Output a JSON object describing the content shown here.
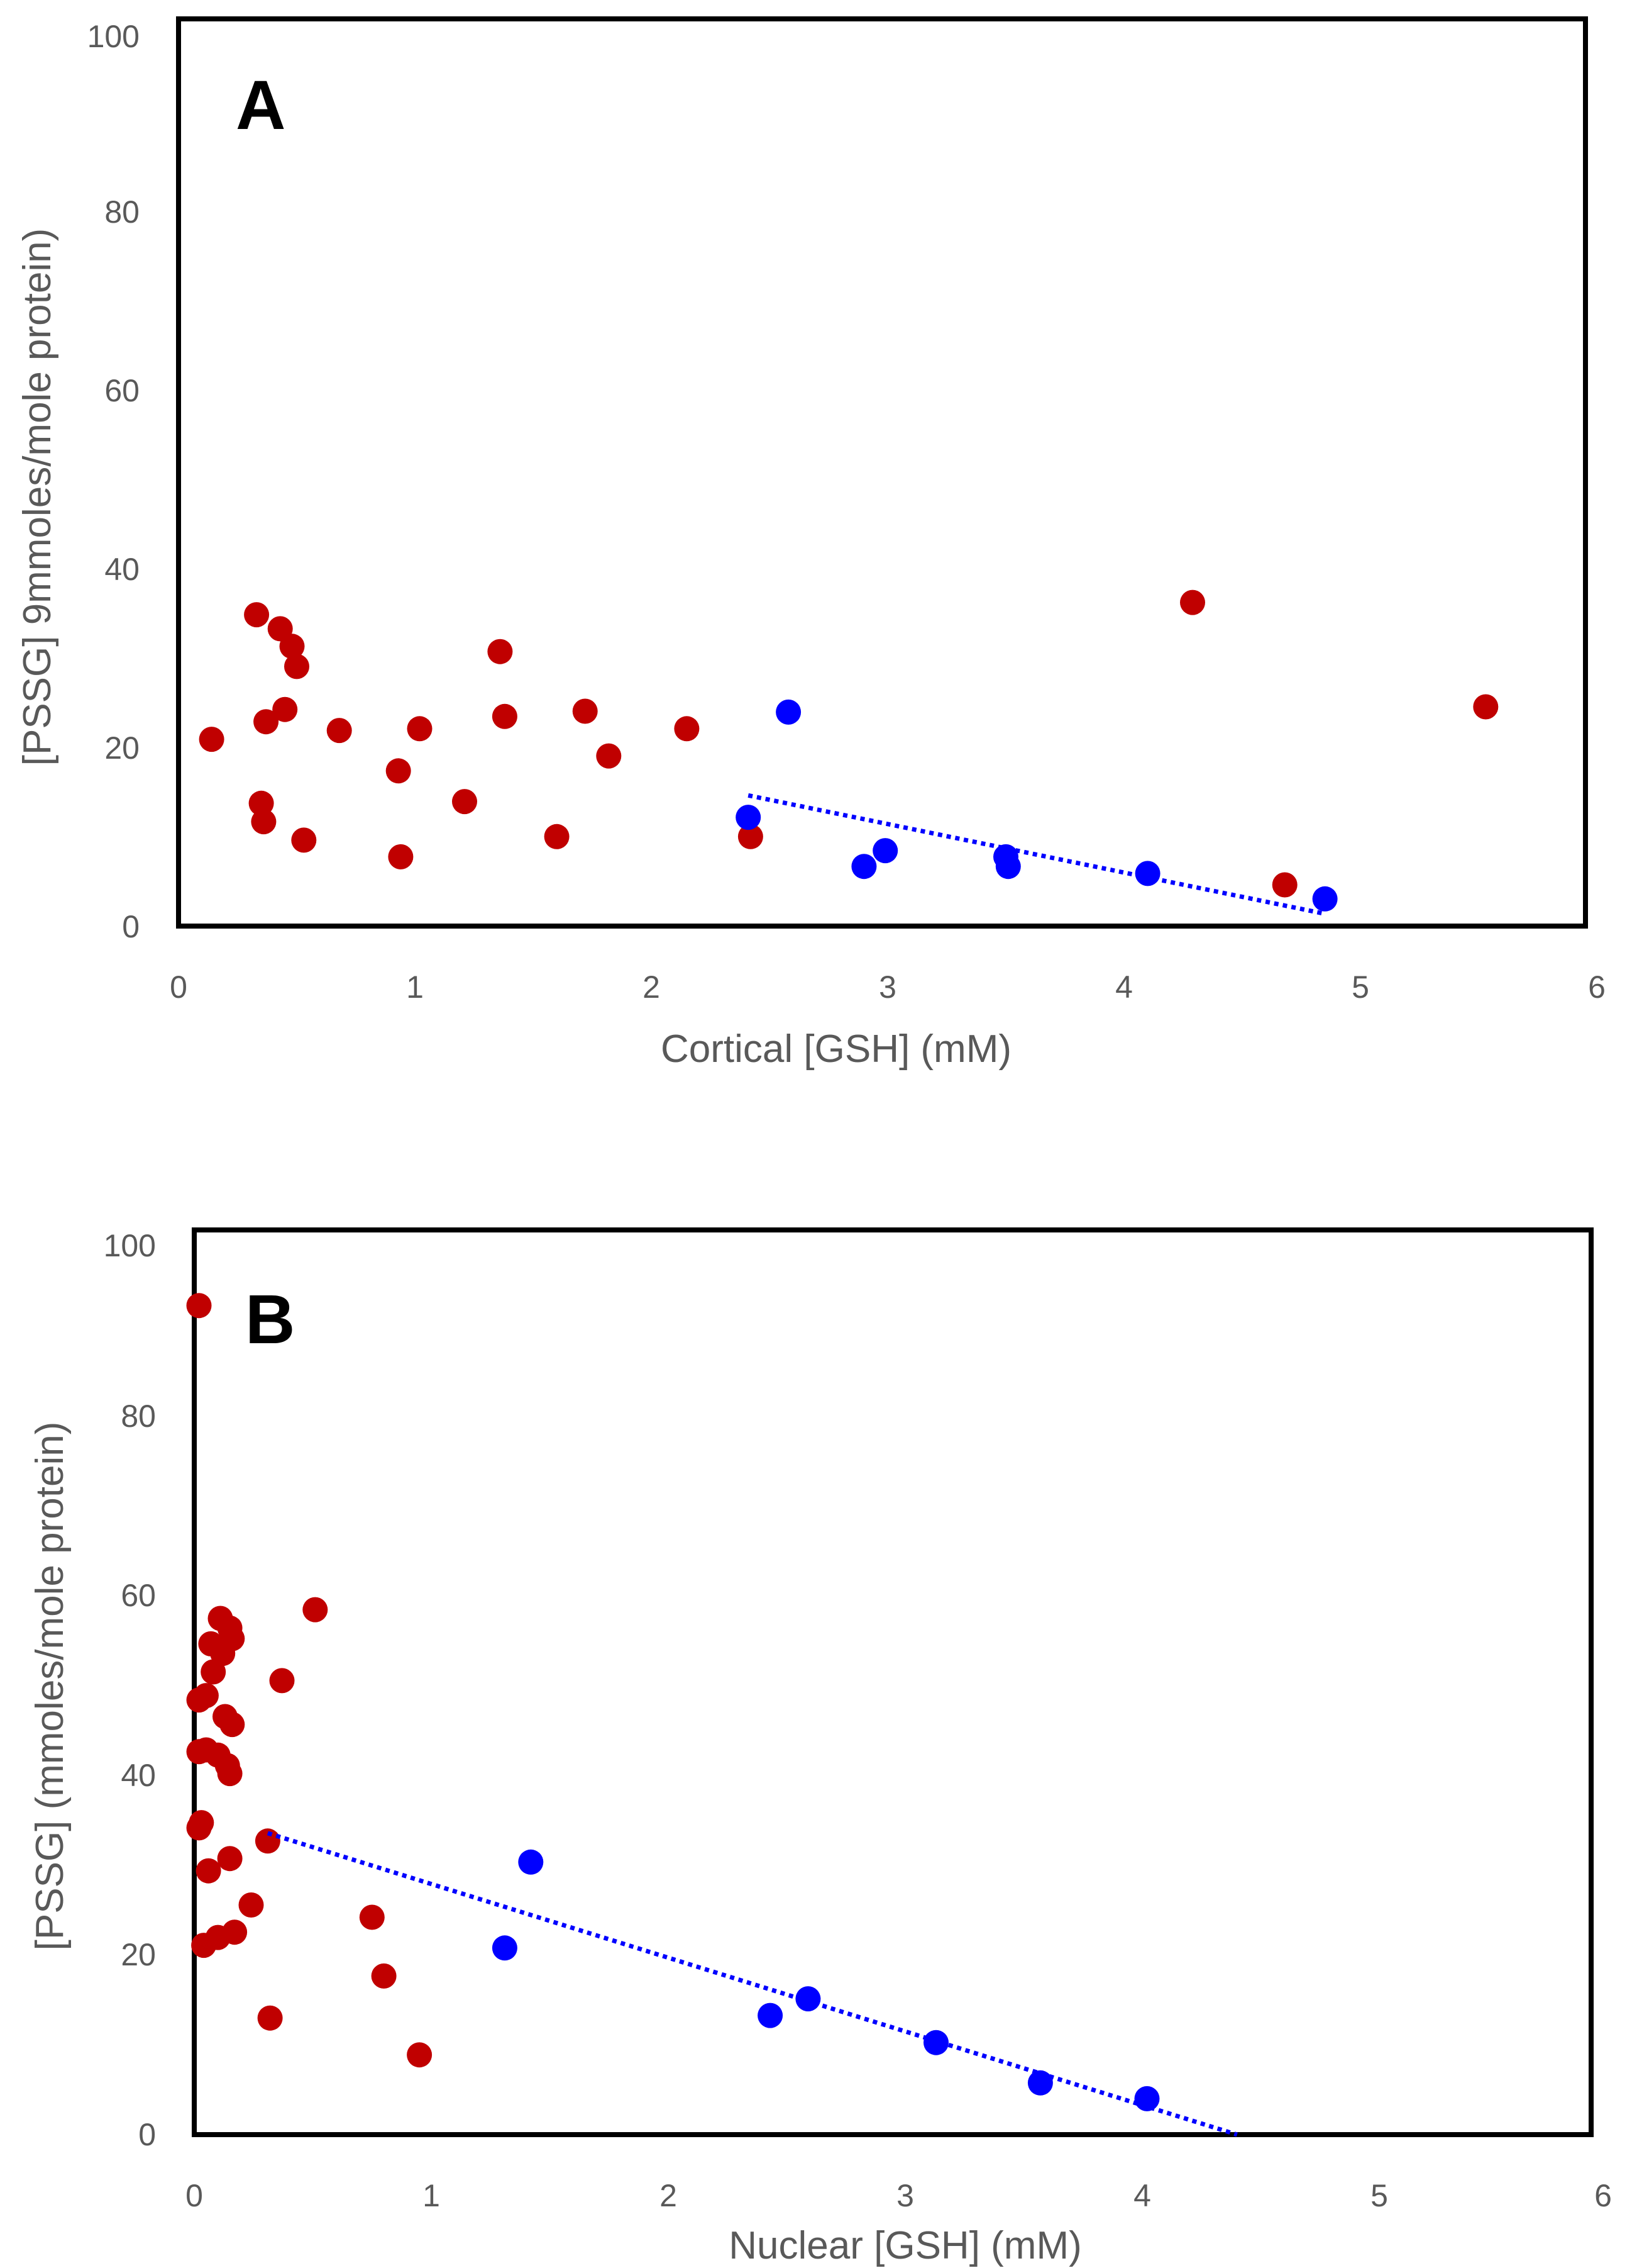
{
  "chart_data": [
    {
      "type": "scatter",
      "panel_label": "A",
      "xlabel": "Cortical [GSH] (mM)",
      "ylabel": "[PSSG] 9mmoles/mole protein)",
      "xlim": [
        0,
        6
      ],
      "ylim": [
        0,
        100
      ],
      "x_ticks": [
        "0",
        "1",
        "2",
        "3",
        "4",
        "5",
        "6"
      ],
      "y_ticks": [
        "0",
        "20",
        "40",
        "60",
        "80",
        "100"
      ],
      "colors": {
        "red": "#C00000",
        "blue": "#0000FF",
        "trend": "#0000FF"
      },
      "series": [
        {
          "name": "red",
          "points": [
            [
              0.14,
              21.3
            ],
            [
              0.33,
              35.5
            ],
            [
              0.35,
              14.0
            ],
            [
              0.36,
              11.9
            ],
            [
              0.37,
              23.3
            ],
            [
              0.43,
              33.9
            ],
            [
              0.45,
              24.7
            ],
            [
              0.48,
              31.9
            ],
            [
              0.5,
              29.6
            ],
            [
              0.53,
              9.8
            ],
            [
              0.68,
              22.3
            ],
            [
              0.93,
              17.7
            ],
            [
              0.94,
              7.9
            ],
            [
              1.02,
              22.5
            ],
            [
              1.21,
              14.2
            ],
            [
              1.36,
              31.3
            ],
            [
              1.38,
              23.9
            ],
            [
              1.6,
              10.2
            ],
            [
              1.72,
              24.5
            ],
            [
              1.82,
              19.4
            ],
            [
              2.15,
              22.5
            ],
            [
              2.42,
              10.2
            ],
            [
              4.29,
              36.9
            ],
            [
              4.68,
              4.7
            ],
            [
              5.53,
              25.0
            ]
          ]
        },
        {
          "name": "blue",
          "points": [
            [
              2.41,
              12.4
            ],
            [
              2.58,
              24.4
            ],
            [
              2.9,
              6.8
            ],
            [
              2.99,
              8.6
            ],
            [
              3.5,
              7.9
            ],
            [
              3.51,
              6.8
            ],
            [
              4.1,
              6.0
            ],
            [
              4.85,
              3.1
            ]
          ]
        }
      ],
      "trendline": {
        "series": "blue",
        "style": "dotted",
        "from": [
          2.41,
          14.9
        ],
        "to": [
          4.85,
          1.4
        ]
      }
    },
    {
      "type": "scatter",
      "panel_label": "B",
      "xlabel": "Nuclear [GSH] (mM)",
      "ylabel": "[PSSG] (mmoles/mole protein)",
      "xlim": [
        0,
        6
      ],
      "ylim": [
        0,
        100
      ],
      "x_ticks": [
        "0",
        "1",
        "2",
        "3",
        "4",
        "5",
        "6"
      ],
      "y_ticks": [
        "0",
        "20",
        "40",
        "60",
        "80",
        "100"
      ],
      "colors": {
        "red": "#C00000",
        "blue": "#0000FF",
        "trend": "#0000FF"
      },
      "series": [
        {
          "name": "red",
          "points": [
            [
              0.02,
              94.6
            ],
            [
              0.02,
              49.6
            ],
            [
              0.02,
              43.7
            ],
            [
              0.02,
              35.0
            ],
            [
              0.03,
              35.6
            ],
            [
              0.04,
              21.6
            ],
            [
              0.05,
              50.1
            ],
            [
              0.05,
              43.9
            ],
            [
              0.06,
              30.1
            ],
            [
              0.07,
              56.0
            ],
            [
              0.08,
              52.8
            ],
            [
              0.1,
              22.5
            ],
            [
              0.1,
              43.3
            ],
            [
              0.11,
              58.9
            ],
            [
              0.12,
              54.9
            ],
            [
              0.13,
              47.7
            ],
            [
              0.14,
              42.1
            ],
            [
              0.15,
              41.2
            ],
            [
              0.15,
              31.5
            ],
            [
              0.15,
              57.8
            ],
            [
              0.16,
              56.6
            ],
            [
              0.16,
              46.8
            ],
            [
              0.17,
              23.1
            ],
            [
              0.24,
              26.2
            ],
            [
              0.31,
              33.5
            ],
            [
              0.32,
              13.3
            ],
            [
              0.37,
              51.8
            ],
            [
              0.51,
              59.9
            ],
            [
              0.75,
              24.8
            ],
            [
              0.8,
              18.1
            ],
            [
              0.95,
              9.1
            ]
          ]
        },
        {
          "name": "blue",
          "points": [
            [
              1.31,
              21.3
            ],
            [
              1.42,
              31.1
            ],
            [
              2.43,
              13.6
            ],
            [
              2.59,
              15.5
            ],
            [
              3.13,
              10.5
            ],
            [
              3.57,
              5.9
            ],
            [
              4.02,
              4.1
            ]
          ]
        }
      ],
      "trendline": {
        "series": "blue",
        "style": "dotted",
        "from": [
          0.31,
          34.4
        ],
        "to": [
          4.4,
          0.0
        ]
      }
    }
  ]
}
